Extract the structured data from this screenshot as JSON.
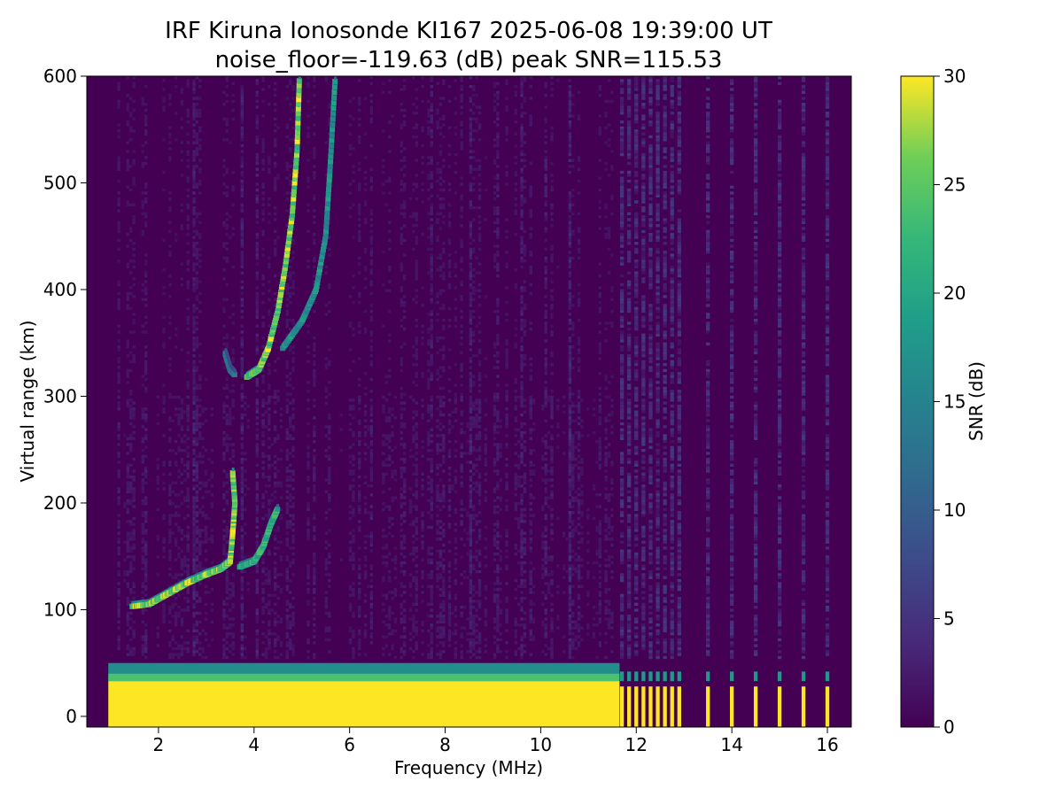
{
  "chart_data": {
    "type": "heatmap",
    "title": "IRF Kiruna Ionosonde KI167 2025-06-08 19:39:00  UT",
    "subtitle": "noise_floor=-119.63 (dB) peak SNR=115.53",
    "xlabel": "Frequency (MHz)",
    "ylabel": "Virtual range (km)",
    "xlim": [
      0.5,
      16.5
    ],
    "ylim": [
      -10,
      600
    ],
    "xticks": [
      2,
      4,
      6,
      8,
      10,
      12,
      14,
      16
    ],
    "yticks": [
      0,
      100,
      200,
      300,
      400,
      500,
      600
    ],
    "colorbar": {
      "label": "SNR (dB)",
      "range": [
        0,
        30
      ],
      "ticks": [
        0,
        5,
        10,
        15,
        20,
        25,
        30
      ],
      "colormap": "viridis"
    },
    "grid": false,
    "data_start_mhz": 0.95,
    "continuous_sweep_end_mhz": 11.65,
    "discrete_channels_mhz": [
      11.7,
      11.85,
      12.0,
      12.15,
      12.3,
      12.45,
      12.6,
      12.75,
      12.9,
      13.5,
      14.0,
      14.5,
      15.0,
      15.5,
      16.0
    ],
    "traces": [
      {
        "name": "",
        "points": [
          [
            1.45,
            103
          ],
          [
            1.8,
            105
          ],
          [
            2.2,
            115
          ],
          [
            2.6,
            125
          ],
          [
            3.0,
            133
          ],
          [
            3.3,
            138
          ],
          [
            3.5,
            145
          ],
          [
            3.55,
            170
          ],
          [
            3.6,
            200
          ],
          [
            3.55,
            230
          ]
        ],
        "peak_snr_db": 30
      },
      {
        "name": "",
        "points": [
          [
            3.7,
            140
          ],
          [
            4.0,
            145
          ],
          [
            4.2,
            160
          ],
          [
            4.35,
            180
          ],
          [
            4.5,
            195
          ]
        ],
        "peak_snr_db": 25
      },
      {
        "name": "",
        "points": [
          [
            3.85,
            318
          ],
          [
            4.1,
            325
          ],
          [
            4.3,
            345
          ],
          [
            4.5,
            380
          ],
          [
            4.65,
            420
          ],
          [
            4.8,
            470
          ],
          [
            4.9,
            530
          ],
          [
            4.95,
            600
          ]
        ],
        "peak_snr_db": 30
      },
      {
        "name": "",
        "points": [
          [
            4.6,
            345
          ],
          [
            5.0,
            370
          ],
          [
            5.3,
            400
          ],
          [
            5.5,
            450
          ],
          [
            5.6,
            520
          ],
          [
            5.7,
            600
          ]
        ],
        "peak_snr_db": 20
      },
      {
        "name": "",
        "points": [
          [
            3.4,
            340
          ],
          [
            3.5,
            325
          ],
          [
            3.6,
            320
          ]
        ],
        "peak_snr_db": 15
      }
    ],
    "ground_clutter": {
      "saturated_top_km": 33,
      "fade_top_km": 50,
      "snr_db": 30
    },
    "background": {
      "typical_snr_db": [
        0,
        4
      ],
      "faint_vertical_streaks_mhz": [
        2.7,
        3.75,
        4.05,
        7.7,
        8.5,
        9.05,
        9.6,
        10.05,
        10.6
      ]
    }
  }
}
